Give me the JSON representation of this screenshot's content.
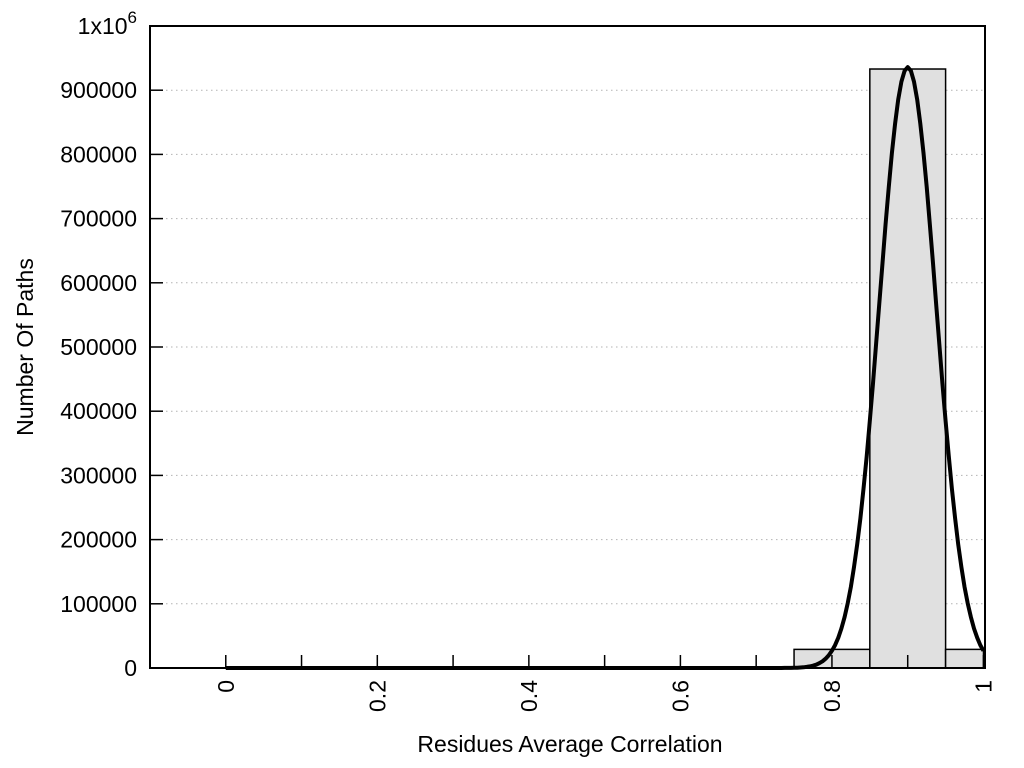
{
  "chart_data": {
    "type": "bar",
    "subtype": "histogram-with-gaussian-fit",
    "title": "",
    "xlabel": "Residues Average Correlation",
    "ylabel": "Number Of Paths",
    "xlim": [
      -0.1,
      1.002
    ],
    "ylim": [
      0,
      1000000
    ],
    "grid": {
      "horizontal": "dotted",
      "vertical": "none"
    },
    "legend": "none",
    "x_ticks": [
      {
        "value": 0,
        "label": "0"
      },
      {
        "value": 0.1,
        "label": ""
      },
      {
        "value": 0.2,
        "label": "0.2"
      },
      {
        "value": 0.3,
        "label": ""
      },
      {
        "value": 0.4,
        "label": "0.4"
      },
      {
        "value": 0.5,
        "label": ""
      },
      {
        "value": 0.6,
        "label": "0.6"
      },
      {
        "value": 0.7,
        "label": ""
      },
      {
        "value": 0.8,
        "label": "0.8"
      },
      {
        "value": 0.9,
        "label": ""
      },
      {
        "value": 1.0,
        "label": "1"
      }
    ],
    "y_ticks": [
      {
        "value": 0,
        "label": "0"
      },
      {
        "value": 100000,
        "label": "100000"
      },
      {
        "value": 200000,
        "label": "200000"
      },
      {
        "value": 300000,
        "label": "300000"
      },
      {
        "value": 400000,
        "label": "400000"
      },
      {
        "value": 500000,
        "label": "500000"
      },
      {
        "value": 600000,
        "label": "600000"
      },
      {
        "value": 700000,
        "label": "700000"
      },
      {
        "value": 800000,
        "label": "800000"
      },
      {
        "value": 900000,
        "label": "900000"
      },
      {
        "value": 1000000,
        "label": "1x10",
        "sup": "6"
      }
    ],
    "bars": [
      {
        "x_from": 0.75,
        "x_to": 0.85,
        "value": 29000
      },
      {
        "x_from": 0.85,
        "x_to": 0.95,
        "value": 933000
      },
      {
        "x_from": 0.95,
        "x_to": 1.0,
        "value": 29000
      }
    ],
    "fit_curve": {
      "shape": "gaussian",
      "mean": 0.9,
      "sigma": 0.0375,
      "amplitude": 936000,
      "x_start": 0,
      "x_end": 1.0
    },
    "colors": {
      "background": "#ffffff",
      "bar_fill": "#e0e0e0",
      "bar_border": "#000000",
      "curve": "#000000",
      "axis": "#000000",
      "gridline": "#b3b3b3",
      "text": "#000000"
    }
  }
}
